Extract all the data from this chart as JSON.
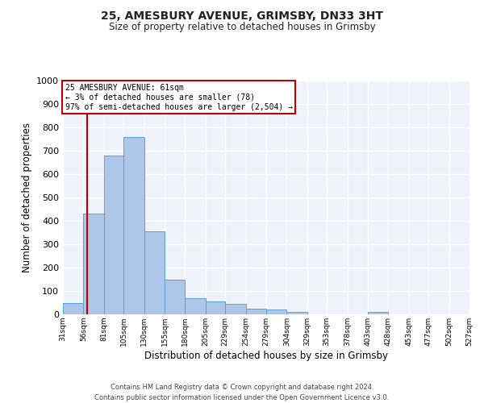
{
  "title_line1": "25, AMESBURY AVENUE, GRIMSBY, DN33 3HT",
  "title_line2": "Size of property relative to detached houses in Grimsby",
  "xlabel": "Distribution of detached houses by size in Grimsby",
  "ylabel": "Number of detached properties",
  "annotation_title": "25 AMESBURY AVENUE: 61sqm",
  "annotation_line2": "← 3% of detached houses are smaller (78)",
  "annotation_line3": "97% of semi-detached houses are larger (2,504) →",
  "property_size_sqm": 61,
  "bin_edges": [
    31,
    56,
    81,
    105,
    130,
    155,
    180,
    205,
    229,
    254,
    279,
    304,
    329,
    353,
    378,
    403,
    428,
    453,
    477,
    502,
    527
  ],
  "bar_heights": [
    50,
    430,
    680,
    760,
    355,
    150,
    70,
    55,
    45,
    25,
    20,
    10,
    0,
    0,
    0,
    10,
    0,
    0,
    0,
    0
  ],
  "bar_color": "#aec6e8",
  "bar_edge_color": "#5a9fd4",
  "highlight_color": "#c00000",
  "background_color": "#eef3fb",
  "grid_color": "#ffffff",
  "ylim": [
    0,
    1000
  ],
  "yticks": [
    0,
    100,
    200,
    300,
    400,
    500,
    600,
    700,
    800,
    900,
    1000
  ],
  "footer_line1": "Contains HM Land Registry data © Crown copyright and database right 2024.",
  "footer_line2": "Contains public sector information licensed under the Open Government Licence v3.0."
}
